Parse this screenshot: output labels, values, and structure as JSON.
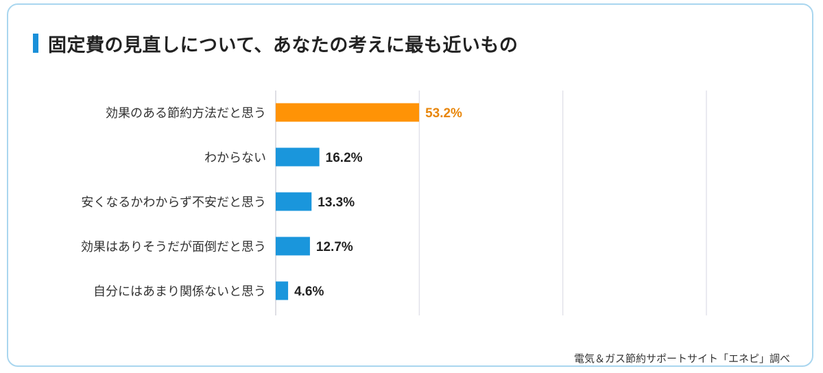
{
  "title": "固定費の見直しについて、あなたの考えに最も近いもの",
  "source": "電気＆ガス節約サポートサイト「エネピ」調べ",
  "chart_data": {
    "type": "bar",
    "orientation": "horizontal",
    "categories": [
      "効果のある節約方法だと思う",
      "わからない",
      "安くなるかわからず不安だと思う",
      "効果はありそうだが面倒だと思う",
      "自分にはあまり関係ないと思う"
    ],
    "values": [
      53.2,
      16.2,
      13.3,
      12.7,
      4.6
    ],
    "value_labels": [
      "53.2%",
      "16.2%",
      "13.3%",
      "12.7%",
      "4.6%"
    ],
    "unit": "%",
    "xlim": [
      0,
      60
    ],
    "grid": true,
    "colors": {
      "highlight": "#ff9306",
      "default": "#1a96dc",
      "highlight_label": "#e8860a",
      "label": "#222222",
      "grid": "#dddde6"
    },
    "highlight_index": 0
  }
}
